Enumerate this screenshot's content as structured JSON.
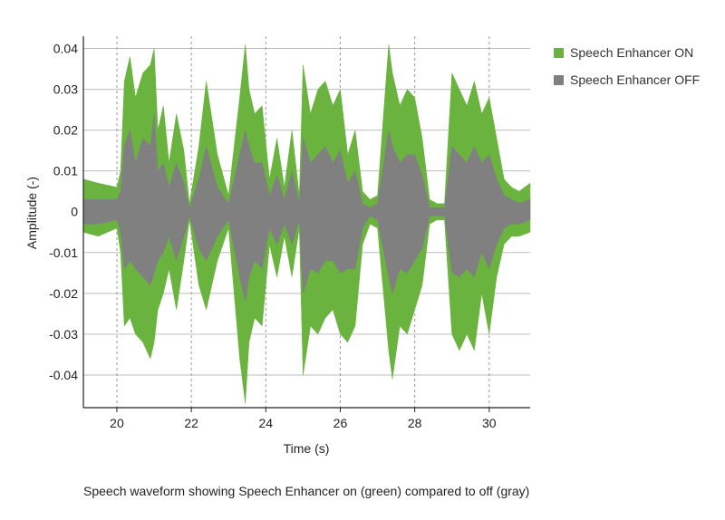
{
  "chart_data": {
    "type": "area",
    "title": "",
    "xlabel": "Time (s)",
    "ylabel": "Amplitude (-)",
    "xlim": [
      19.1,
      31.1
    ],
    "ylim": [
      -0.048,
      0.043
    ],
    "x_ticks": [
      20,
      22,
      24,
      26,
      28,
      30
    ],
    "x_tick_labels": [
      "20",
      "22",
      "24",
      "26",
      "28",
      "30"
    ],
    "y_ticks": [
      0.04,
      0.03,
      0.02,
      0.01,
      0,
      -0.01,
      -0.02,
      -0.03,
      -0.04
    ],
    "y_tick_labels": [
      "0.04",
      "0.03",
      "0.02",
      "0.01",
      "0",
      "-0.01",
      "-0.02",
      "-0.03",
      "-0.04"
    ],
    "grid": {
      "horizontal": true,
      "vertical_dashed_at_ticks": true
    },
    "legend_position": "top-right",
    "series": [
      {
        "name": "Speech Enhancer ON",
        "color": "#6bb33f",
        "x": [
          19.1,
          19.5,
          20.0,
          20.1,
          20.2,
          20.35,
          20.5,
          20.7,
          20.9,
          21.0,
          21.1,
          21.25,
          21.4,
          21.6,
          21.8,
          21.95,
          22.2,
          22.4,
          22.7,
          23.0,
          23.3,
          23.45,
          23.55,
          23.7,
          23.9,
          24.1,
          24.3,
          24.5,
          24.7,
          24.9,
          25.0,
          25.2,
          25.4,
          25.6,
          25.8,
          26.0,
          26.2,
          26.4,
          26.6,
          26.8,
          27.0,
          27.3,
          27.4,
          27.6,
          27.8,
          28.0,
          28.2,
          28.4,
          28.6,
          28.8,
          29.0,
          29.2,
          29.4,
          29.6,
          29.8,
          30.0,
          30.2,
          30.4,
          30.6,
          30.8,
          31.1
        ],
        "upper": [
          0.008,
          0.007,
          0.006,
          0.01,
          0.032,
          0.038,
          0.028,
          0.034,
          0.036,
          0.04,
          0.02,
          0.026,
          0.012,
          0.024,
          0.015,
          0.002,
          0.016,
          0.032,
          0.014,
          0.004,
          0.028,
          0.041,
          0.03,
          0.024,
          0.026,
          0.008,
          0.018,
          0.006,
          0.02,
          0.004,
          0.036,
          0.024,
          0.03,
          0.032,
          0.026,
          0.03,
          0.014,
          0.02,
          0.005,
          0.003,
          0.004,
          0.041,
          0.034,
          0.026,
          0.03,
          0.028,
          0.018,
          0.003,
          0.002,
          0.002,
          0.034,
          0.03,
          0.026,
          0.032,
          0.024,
          0.028,
          0.018,
          0.008,
          0.006,
          0.005,
          0.007
        ],
        "lower": [
          -0.005,
          -0.006,
          -0.004,
          -0.01,
          -0.028,
          -0.026,
          -0.03,
          -0.032,
          -0.036,
          -0.032,
          -0.024,
          -0.02,
          -0.014,
          -0.024,
          -0.012,
          -0.002,
          -0.018,
          -0.024,
          -0.012,
          -0.004,
          -0.036,
          -0.047,
          -0.032,
          -0.026,
          -0.028,
          -0.008,
          -0.016,
          -0.006,
          -0.016,
          -0.004,
          -0.04,
          -0.028,
          -0.03,
          -0.026,
          -0.024,
          -0.03,
          -0.032,
          -0.028,
          -0.008,
          -0.003,
          -0.004,
          -0.034,
          -0.041,
          -0.028,
          -0.03,
          -0.024,
          -0.018,
          -0.003,
          -0.002,
          -0.002,
          -0.03,
          -0.034,
          -0.03,
          -0.034,
          -0.02,
          -0.03,
          -0.016,
          -0.008,
          -0.006,
          -0.006,
          -0.005
        ]
      },
      {
        "name": "Speech Enhancer OFF",
        "color": "#808080",
        "x": [
          19.1,
          19.5,
          20.0,
          20.1,
          20.2,
          20.35,
          20.5,
          20.7,
          20.9,
          21.0,
          21.1,
          21.25,
          21.4,
          21.6,
          21.8,
          21.95,
          22.2,
          22.4,
          22.7,
          23.0,
          23.3,
          23.45,
          23.55,
          23.7,
          23.9,
          24.1,
          24.3,
          24.5,
          24.7,
          24.9,
          25.0,
          25.2,
          25.4,
          25.6,
          25.8,
          26.0,
          26.2,
          26.4,
          26.6,
          26.8,
          27.0,
          27.3,
          27.4,
          27.6,
          27.8,
          28.0,
          28.2,
          28.4,
          28.6,
          28.8,
          29.0,
          29.2,
          29.4,
          29.6,
          29.8,
          30.0,
          30.2,
          30.4,
          30.6,
          30.8,
          31.1
        ],
        "upper": [
          0.003,
          0.003,
          0.003,
          0.005,
          0.016,
          0.02,
          0.012,
          0.018,
          0.016,
          0.024,
          0.01,
          0.012,
          0.006,
          0.012,
          0.007,
          0.001,
          0.008,
          0.016,
          0.006,
          0.002,
          0.014,
          0.02,
          0.016,
          0.012,
          0.012,
          0.004,
          0.009,
          0.003,
          0.01,
          0.002,
          0.018,
          0.012,
          0.014,
          0.016,
          0.012,
          0.015,
          0.007,
          0.01,
          0.002,
          0.001,
          0.002,
          0.02,
          0.016,
          0.012,
          0.014,
          0.014,
          0.009,
          0.001,
          0.001,
          0.001,
          0.016,
          0.014,
          0.012,
          0.016,
          0.012,
          0.014,
          0.008,
          0.004,
          0.003,
          0.002,
          0.003
        ],
        "lower": [
          -0.003,
          -0.003,
          -0.002,
          -0.005,
          -0.014,
          -0.012,
          -0.014,
          -0.016,
          -0.018,
          -0.015,
          -0.012,
          -0.01,
          -0.006,
          -0.012,
          -0.006,
          -0.001,
          -0.009,
          -0.012,
          -0.006,
          -0.002,
          -0.016,
          -0.022,
          -0.016,
          -0.012,
          -0.014,
          -0.004,
          -0.008,
          -0.003,
          -0.008,
          -0.002,
          -0.02,
          -0.014,
          -0.015,
          -0.012,
          -0.012,
          -0.015,
          -0.014,
          -0.014,
          -0.004,
          -0.001,
          -0.002,
          -0.016,
          -0.02,
          -0.014,
          -0.015,
          -0.012,
          -0.009,
          -0.001,
          -0.001,
          -0.001,
          -0.015,
          -0.016,
          -0.014,
          -0.016,
          -0.01,
          -0.014,
          -0.008,
          -0.004,
          -0.003,
          -0.003,
          -0.002
        ]
      }
    ]
  },
  "caption": "Speech waveform showing Speech Enhancer on (green) compared to off (gray)",
  "colors": {
    "grid": "#bdbdbd",
    "axis": "#222222",
    "background": "#ffffff"
  }
}
